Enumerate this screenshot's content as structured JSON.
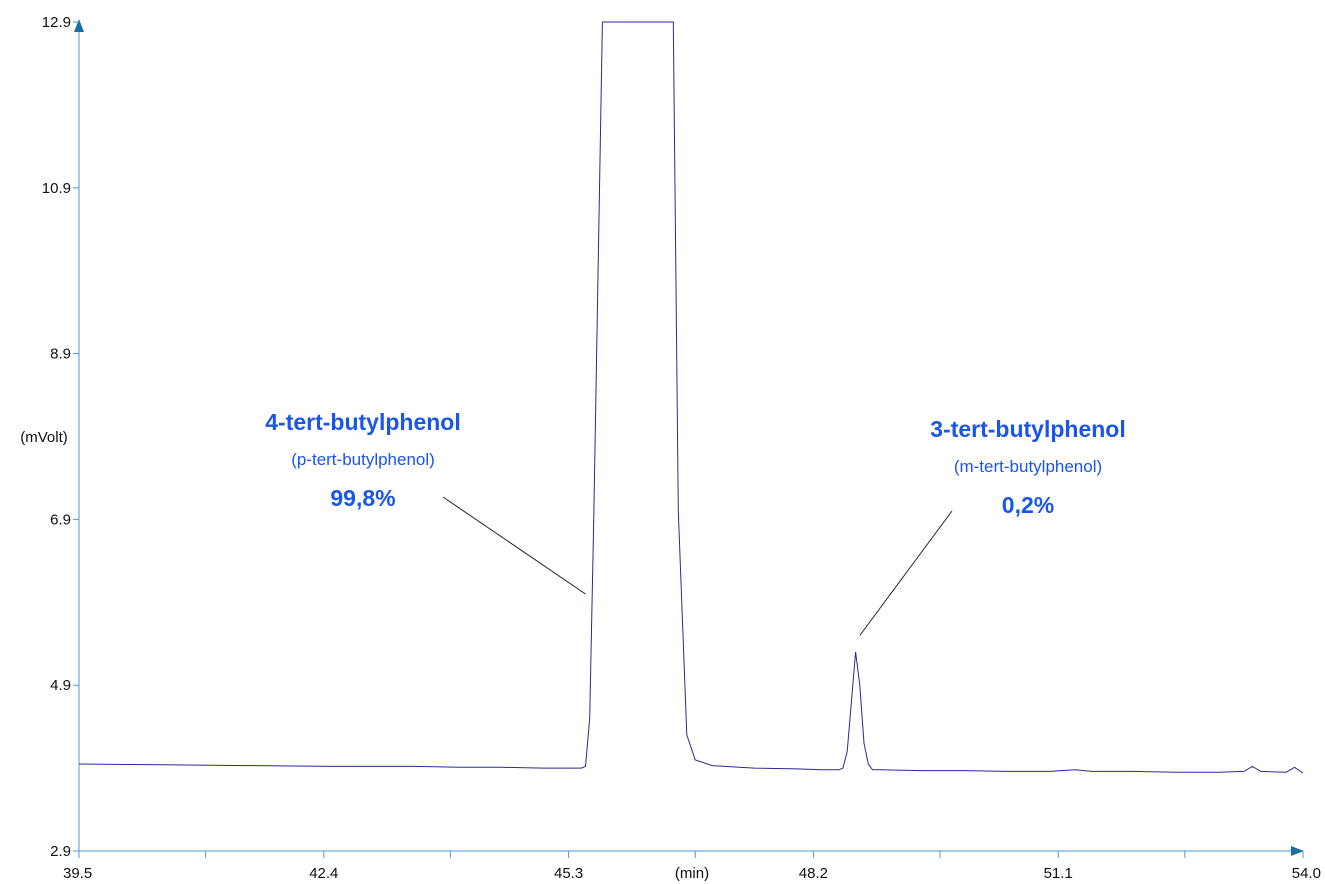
{
  "colors": {
    "axis": "#4a9bd4",
    "trace": "#2e2a8c",
    "annotation": "#1a56e8",
    "arrow": "#222222"
  },
  "chart_data": {
    "type": "line",
    "title": "",
    "xlabel": "(min)",
    "ylabel": "(mVolt)",
    "xlim": [
      39.5,
      54.0
    ],
    "ylim": [
      2.9,
      12.9
    ],
    "x_ticks": [
      "39.5",
      "42.4",
      "45.3",
      "48.2",
      "51.1",
      "54.0"
    ],
    "y_ticks": [
      "2.9",
      "4.9",
      "6.9",
      "8.9",
      "10.9",
      "12.9"
    ],
    "x_minor_ticks": [
      41.0,
      43.9,
      46.8,
      49.7,
      52.6
    ],
    "grid": false,
    "legend": "none",
    "series": [
      {
        "x": [
          39.5,
          40.5,
          41.5,
          42.5,
          43.5,
          44.0,
          44.5,
          45.0,
          45.2,
          45.4,
          45.45,
          45.5,
          45.55,
          45.6,
          45.7,
          45.85,
          46.0,
          46.2,
          46.4,
          46.5,
          46.54,
          46.6,
          46.7,
          46.8,
          47.0,
          47.5,
          48.0,
          48.3,
          48.5,
          48.55,
          48.6,
          48.65,
          48.7,
          48.75,
          48.8,
          48.85,
          48.9,
          49.0,
          49.5,
          50.0,
          50.5,
          51.0,
          51.3,
          51.5,
          52.0,
          52.5,
          53.0,
          53.3,
          53.4,
          53.5,
          53.8,
          53.9,
          54.0
        ],
        "y": [
          3.95,
          3.94,
          3.93,
          3.92,
          3.92,
          3.91,
          3.91,
          3.9,
          3.9,
          3.9,
          3.9,
          3.92,
          4.5,
          7.0,
          12.9,
          12.9,
          12.9,
          12.9,
          12.9,
          12.9,
          12.9,
          7.0,
          4.3,
          4.0,
          3.93,
          3.9,
          3.89,
          3.88,
          3.88,
          3.9,
          4.1,
          4.7,
          5.3,
          4.9,
          4.2,
          3.95,
          3.88,
          3.88,
          3.87,
          3.87,
          3.86,
          3.86,
          3.88,
          3.86,
          3.86,
          3.85,
          3.85,
          3.86,
          3.92,
          3.86,
          3.85,
          3.91,
          3.84
        ]
      }
    ],
    "annotations": [
      {
        "name": "4-tert-butylphenol",
        "alias": "(p-tert-butylphenol)",
        "percent": "99,8%",
        "target_x": 45.5,
        "target_y": 6.0
      },
      {
        "name": "3-tert-butylphenol",
        "alias": "(m-tert-butylphenol)",
        "percent": "0,2%",
        "target_x": 48.75,
        "target_y": 5.5
      }
    ]
  }
}
